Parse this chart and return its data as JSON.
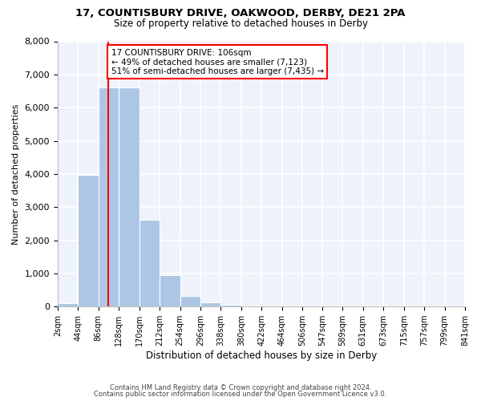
{
  "title1": "17, COUNTISBURY DRIVE, OAKWOOD, DERBY, DE21 2PA",
  "title2": "Size of property relative to detached houses in Derby",
  "xlabel": "Distribution of detached houses by size in Derby",
  "ylabel": "Number of detached properties",
  "bin_edges": [
    2,
    44,
    86,
    128,
    170,
    212,
    254,
    296,
    338,
    380,
    422,
    464,
    506,
    547,
    589,
    631,
    673,
    715,
    757,
    799,
    841
  ],
  "bar_heights": [
    100,
    3980,
    6620,
    6620,
    2620,
    950,
    330,
    120,
    60,
    30,
    15,
    10,
    8,
    5,
    4,
    3,
    2,
    2,
    1,
    1
  ],
  "bar_color": "#adc6e5",
  "vline_x": 106,
  "vline_color": "red",
  "annotation_text": "17 COUNTISBURY DRIVE: 106sqm\n← 49% of detached houses are smaller (7,123)\n51% of semi-detached houses are larger (7,435) →",
  "ylim": [
    0,
    8000
  ],
  "yticks": [
    0,
    1000,
    2000,
    3000,
    4000,
    5000,
    6000,
    7000,
    8000
  ],
  "bg_color": "#eef2fb",
  "grid_color": "white",
  "footer1": "Contains HM Land Registry data © Crown copyright and database right 2024.",
  "footer2": "Contains public sector information licensed under the Open Government Licence v3.0."
}
